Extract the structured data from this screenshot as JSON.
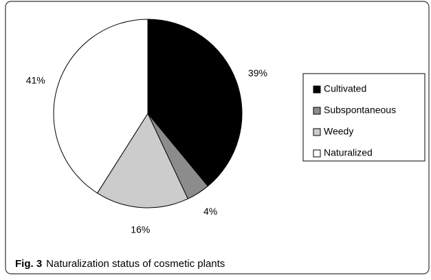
{
  "chart_data": {
    "type": "pie",
    "categories": [
      "Cultivated",
      "Subspontaneous",
      "Weedy",
      "Naturalized"
    ],
    "values": [
      39,
      4,
      16,
      41
    ],
    "value_labels": [
      "39%",
      "4%",
      "16%",
      "41%"
    ],
    "colors": [
      "#000000",
      "#8c8c8c",
      "#cccccc",
      "#ffffff"
    ],
    "legend": "right",
    "caption_label": "Fig. 3",
    "caption": "Naturalization status of cosmetic plants"
  }
}
